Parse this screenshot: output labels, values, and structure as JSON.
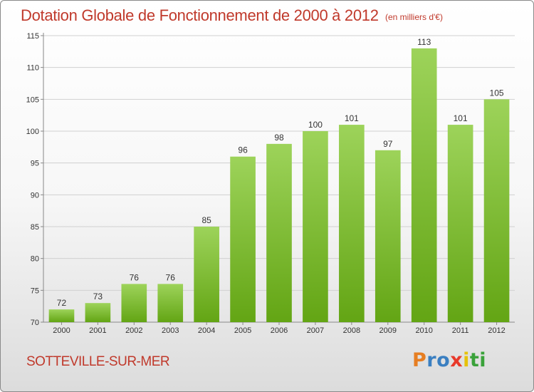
{
  "header": {
    "title": "Dotation Globale de Fonctionnement de 2000 à 2012",
    "unit": "(en milliers d'€)"
  },
  "footer": {
    "place": "SOTTEVILLE-SUR-MER",
    "logo_letters": [
      "P",
      "r",
      "o",
      "x",
      "i",
      "t",
      "i"
    ],
    "logo_colors": [
      "#e67e22",
      "#3a7fc1",
      "#3a7fc1",
      "#e8392a",
      "#e6c20a",
      "#3aa23a",
      "#3aa23a"
    ]
  },
  "colors": {
    "bar_top": "#9dd35a",
    "bar_bottom": "#63a514",
    "title": "#c0392b",
    "grid": "#d0d0d0"
  },
  "chart_data": {
    "type": "bar",
    "title": "Dotation Globale de Fonctionnement de 2000 à 2012",
    "subtitle": "(en milliers d'€)",
    "xlabel": "",
    "ylabel": "",
    "categories": [
      "2000",
      "2001",
      "2002",
      "2003",
      "2004",
      "2005",
      "2006",
      "2007",
      "2008",
      "2009",
      "2010",
      "2011",
      "2012"
    ],
    "values": [
      72,
      73,
      76,
      76,
      85,
      96,
      98,
      100,
      101,
      97,
      113,
      101,
      105
    ],
    "ylim": [
      70,
      115
    ],
    "yticks": [
      70,
      75,
      80,
      85,
      90,
      95,
      100,
      105,
      110,
      115
    ],
    "grid": true,
    "legend": "none"
  }
}
